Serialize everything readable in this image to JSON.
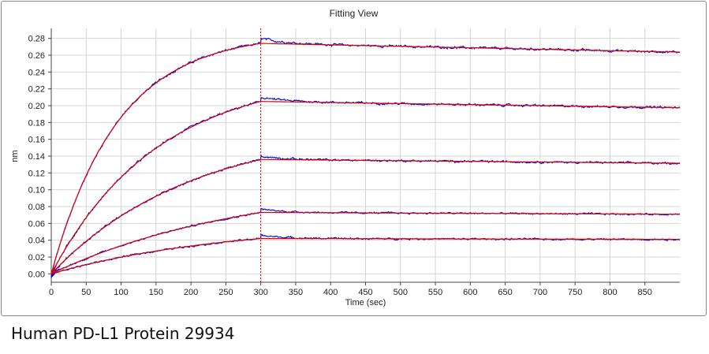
{
  "window": {
    "title": "Fitting View"
  },
  "caption": "Human PD-L1 Protein 29934",
  "chart_data": {
    "type": "line",
    "title": "Fitting View",
    "xlabel": "Time (sec)",
    "ylabel": "nm",
    "xlim": [
      0,
      900
    ],
    "ylim": [
      -0.01,
      0.29
    ],
    "x_ticks": [
      "0",
      "50",
      "100",
      "150",
      "200",
      "250",
      "300",
      "350",
      "400",
      "450",
      "500",
      "550",
      "600",
      "650",
      "700",
      "750",
      "800",
      "850"
    ],
    "y_ticks": [
      "0.28",
      "0.26",
      "0.24",
      "0.22",
      "0.20",
      "0.18",
      "0.16",
      "0.14",
      "0.12",
      "0.10",
      "0.08",
      "0.06",
      "0.04",
      "0.02",
      "0.00"
    ],
    "grid": {
      "x": true,
      "y": true
    },
    "association_end_x": 300,
    "colors": {
      "measured": "#0000dd",
      "fit": "#e00000",
      "marker": "#cc0000",
      "grid": "#d4d4d4"
    },
    "series": [
      {
        "plateau": 0.274,
        "kobs": 0.0105,
        "koff": 6.4e-05,
        "overshoot": 0.006,
        "noise": 0.0016
      },
      {
        "plateau": 0.205,
        "kobs": 0.0066,
        "koff": 6.2e-05,
        "overshoot": 0.005,
        "noise": 0.0015
      },
      {
        "plateau": 0.136,
        "kobs": 0.005,
        "koff": 5.6e-05,
        "overshoot": 0.004,
        "noise": 0.0014
      },
      {
        "plateau": 0.073,
        "kobs": 0.0036,
        "koff": 5e-05,
        "overshoot": 0.004,
        "noise": 0.0012
      },
      {
        "plateau": 0.042,
        "kobs": 0.004,
        "koff": 4.2e-05,
        "overshoot": 0.004,
        "noise": 0.0012
      }
    ]
  }
}
